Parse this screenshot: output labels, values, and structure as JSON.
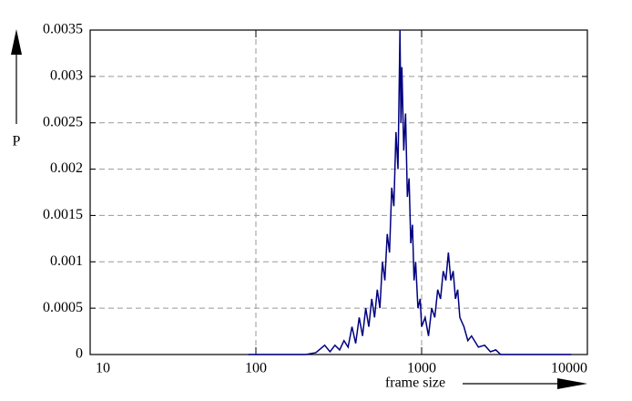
{
  "chart_data": {
    "type": "line",
    "y_label": "P",
    "x_label": "frame size",
    "log_x": true,
    "grid": true,
    "xlim": [
      10,
      10000
    ],
    "xticks": [
      10,
      100,
      1000,
      10000
    ],
    "ylim": [
      0,
      0.0035
    ],
    "yticks": [
      0,
      0.0005,
      0.001,
      0.0015,
      0.002,
      0.0025,
      0.003,
      0.0035
    ],
    "x": [
      90,
      200,
      230,
      260,
      280,
      300,
      320,
      340,
      360,
      380,
      400,
      420,
      440,
      460,
      480,
      500,
      520,
      540,
      560,
      580,
      600,
      620,
      640,
      660,
      680,
      700,
      720,
      740,
      750,
      760,
      780,
      800,
      820,
      840,
      860,
      880,
      900,
      920,
      950,
      980,
      1000,
      1050,
      1100,
      1150,
      1200,
      1250,
      1300,
      1350,
      1400,
      1450,
      1500,
      1550,
      1600,
      1650,
      1700,
      1800,
      1900,
      2000,
      2200,
      2400,
      2600,
      2800,
      3000,
      8000
    ],
    "series": [
      {
        "color": "#000080",
        "values": [
          0,
          0,
          2e-05,
          0.0001,
          3e-05,
          0.0001,
          5e-05,
          0.00015,
          8e-05,
          0.0003,
          0.00012,
          0.0004,
          0.0002,
          0.0005,
          0.0003,
          0.0006,
          0.0004,
          0.0007,
          0.0005,
          0.001,
          0.0008,
          0.0013,
          0.0011,
          0.0018,
          0.0016,
          0.0024,
          0.002,
          0.0035,
          0.0025,
          0.0031,
          0.0022,
          0.0026,
          0.0017,
          0.0019,
          0.0012,
          0.0014,
          0.0008,
          0.001,
          0.0005,
          0.0006,
          0.0003,
          0.0004,
          0.0002,
          0.0005,
          0.0004,
          0.0007,
          0.0006,
          0.0009,
          0.0008,
          0.0011,
          0.0008,
          0.0009,
          0.0006,
          0.0007,
          0.0004,
          0.0003,
          0.00015,
          0.0002,
          8e-05,
          0.0001,
          3e-05,
          5e-05,
          0,
          0
        ]
      }
    ]
  }
}
